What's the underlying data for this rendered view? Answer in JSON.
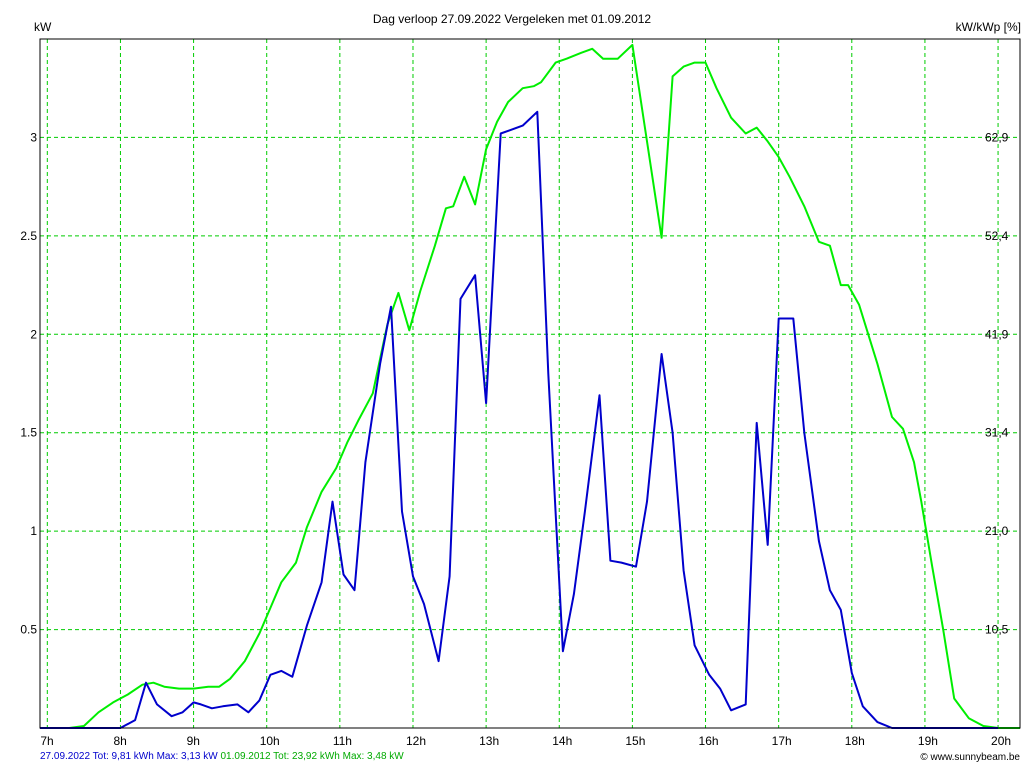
{
  "chart_data": {
    "type": "line",
    "title": "Dag  verloop 27.09.2022   Vergeleken met 01.09.2012",
    "ylabel_left": "kW",
    "ylabel_right": "kW/kWp [%]",
    "x_ticks": [
      "7h",
      "8h",
      "9h",
      "10h",
      "11h",
      "12h",
      "13h",
      "14h",
      "15h",
      "16h",
      "17h",
      "18h",
      "19h",
      "20h"
    ],
    "y_ticks": [
      "0.5",
      "1",
      "1.5",
      "2",
      "2.5",
      "3"
    ],
    "y2_ticks": [
      "10,5",
      "21,0",
      "31,4",
      "41,9",
      "52,4",
      "62,9"
    ],
    "xlim": [
      6.9,
      20.3
    ],
    "ylim": [
      0,
      3.5
    ],
    "grid": true,
    "series": [
      {
        "name": "27.09.2022",
        "color": "#0000cc",
        "x": [
          6.9,
          7.5,
          8.0,
          8.2,
          8.35,
          8.5,
          8.7,
          8.85,
          9.0,
          9.1,
          9.25,
          9.4,
          9.6,
          9.75,
          9.9,
          10.05,
          10.2,
          10.35,
          10.55,
          10.75,
          10.9,
          11.05,
          11.2,
          11.35,
          11.55,
          11.7,
          11.85,
          12.0,
          12.15,
          12.35,
          12.5,
          12.65,
          12.85,
          13.0,
          13.2,
          13.5,
          13.7,
          13.85,
          14.05,
          14.2,
          14.35,
          14.55,
          14.7,
          14.85,
          15.05,
          15.2,
          15.4,
          15.55,
          15.7,
          15.85,
          16.05,
          16.2,
          16.35,
          16.55,
          16.7,
          16.85,
          17.0,
          17.2,
          17.35,
          17.55,
          17.7,
          17.85,
          18.0,
          18.15,
          18.35,
          18.55,
          18.7,
          19.0,
          19.5,
          20.0
        ],
        "y": [
          0,
          0,
          0,
          0.04,
          0.23,
          0.12,
          0.06,
          0.08,
          0.13,
          0.12,
          0.1,
          0.11,
          0.12,
          0.08,
          0.14,
          0.27,
          0.29,
          0.26,
          0.52,
          0.74,
          1.15,
          0.78,
          0.7,
          1.35,
          1.85,
          2.14,
          1.1,
          0.77,
          0.63,
          0.34,
          0.77,
          2.18,
          2.3,
          1.65,
          3.02,
          3.06,
          3.13,
          1.8,
          0.39,
          0.68,
          1.1,
          1.69,
          0.85,
          0.84,
          0.82,
          1.15,
          1.9,
          1.5,
          0.8,
          0.42,
          0.27,
          0.2,
          0.09,
          0.12,
          1.55,
          0.93,
          2.08,
          2.08,
          1.5,
          0.95,
          0.7,
          0.6,
          0.28,
          0.11,
          0.03,
          0,
          0,
          0,
          0,
          0
        ]
      },
      {
        "name": "01.09.2012",
        "color": "#00ee00",
        "x": [
          6.9,
          7.3,
          7.5,
          7.7,
          7.9,
          8.1,
          8.3,
          8.45,
          8.6,
          8.8,
          9.0,
          9.2,
          9.35,
          9.5,
          9.7,
          9.9,
          10.05,
          10.2,
          10.4,
          10.55,
          10.75,
          10.95,
          11.1,
          11.25,
          11.45,
          11.65,
          11.8,
          11.95,
          12.1,
          12.3,
          12.45,
          12.55,
          12.7,
          12.85,
          13.0,
          13.15,
          13.3,
          13.5,
          13.65,
          13.75,
          13.95,
          14.1,
          14.3,
          14.45,
          14.6,
          14.8,
          15.0,
          15.2,
          15.4,
          15.55,
          15.7,
          15.85,
          16.0,
          16.15,
          16.35,
          16.55,
          16.7,
          16.85,
          17.0,
          17.15,
          17.35,
          17.55,
          17.7,
          17.85,
          17.95,
          18.1,
          18.35,
          18.55,
          18.7,
          18.85,
          18.95,
          19.1,
          19.25,
          19.4,
          19.6,
          19.8,
          20.0,
          20.3
        ],
        "y": [
          0,
          0,
          0.01,
          0.08,
          0.13,
          0.17,
          0.22,
          0.23,
          0.21,
          0.2,
          0.2,
          0.21,
          0.21,
          0.25,
          0.34,
          0.48,
          0.61,
          0.74,
          0.84,
          1.02,
          1.2,
          1.32,
          1.45,
          1.56,
          1.7,
          2.05,
          2.21,
          2.02,
          2.22,
          2.45,
          2.64,
          2.65,
          2.8,
          2.66,
          2.94,
          3.08,
          3.18,
          3.25,
          3.26,
          3.28,
          3.38,
          3.4,
          3.43,
          3.45,
          3.4,
          3.4,
          3.47,
          2.98,
          2.49,
          3.31,
          3.36,
          3.38,
          3.38,
          3.25,
          3.1,
          3.02,
          3.05,
          2.98,
          2.9,
          2.8,
          2.65,
          2.47,
          2.45,
          2.25,
          2.25,
          2.15,
          1.85,
          1.58,
          1.52,
          1.35,
          1.15,
          0.82,
          0.5,
          0.15,
          0.05,
          0.01,
          0,
          0
        ]
      }
    ]
  },
  "footer": {
    "blue": "27.09.2022 Tot: 9,81 kWh Max: 3,13 kW",
    "green": "01.09.2012 Tot: 23,92 kWh Max: 3,48 kW",
    "blue_color": "#0000cc",
    "green_color": "#00aa00"
  },
  "copyright": "© www.sunnybeam.be"
}
